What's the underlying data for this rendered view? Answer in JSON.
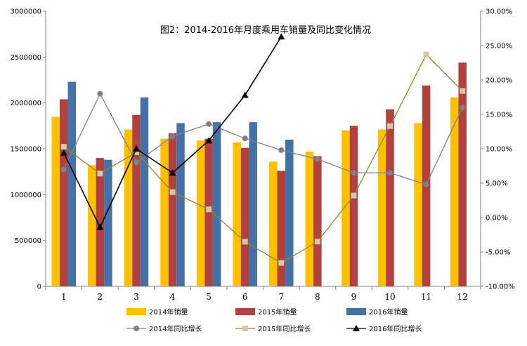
{
  "chart_data": {
    "type": "bar",
    "title": "图2：2014-2016年月度乘用车销量及同比变化情况",
    "categories": [
      "1",
      "2",
      "3",
      "4",
      "5",
      "6",
      "7",
      "8",
      "9",
      "10",
      "11",
      "12"
    ],
    "y_left": {
      "range": [
        0,
        3000000
      ],
      "ticks": [
        0,
        500000,
        1000000,
        1500000,
        2000000,
        2500000,
        3000000
      ],
      "tick_labels": [
        "0",
        "500000",
        "1000000",
        "1500000",
        "2000000",
        "2500000",
        "3000000"
      ]
    },
    "y_right": {
      "range": [
        -10,
        30
      ],
      "ticks": [
        -10,
        -5,
        0,
        5,
        10,
        15,
        20,
        25,
        30
      ],
      "tick_labels": [
        "-10.00%",
        "-5.00%",
        "0.00%",
        "5.00%",
        "10.00%",
        "15.00%",
        "20.00%",
        "25.00%",
        "30.00%"
      ]
    },
    "bar_series": [
      {
        "name": "2014年销量",
        "color": "#FFC000",
        "values": [
          1850000,
          1320000,
          1710000,
          1610000,
          1590000,
          1570000,
          1360000,
          1470000,
          1700000,
          1710000,
          1780000,
          2060000
        ]
      },
      {
        "name": "2015年销量",
        "color": "#B0413E",
        "values": [
          2040000,
          1400000,
          1870000,
          1670000,
          1610000,
          1510000,
          1260000,
          1420000,
          1750000,
          1930000,
          2190000,
          2440000
        ]
      },
      {
        "name": "2016年销量",
        "color": "#4472A8",
        "values": [
          2230000,
          1380000,
          2060000,
          1780000,
          1790000,
          1790000,
          1600000,
          null,
          null,
          null,
          null,
          null
        ]
      }
    ],
    "line_series": [
      {
        "name": "2014年同比增长",
        "color": "#7F7F9F",
        "marker": "circle",
        "marker_color": "#808080",
        "values": [
          7.0,
          18.0,
          8.0,
          11.8,
          13.6,
          11.5,
          9.8,
          8.5,
          6.5,
          6.5,
          4.8,
          16.0
        ]
      },
      {
        "name": "2015年同比增长",
        "color": "#8C8C2A",
        "marker": "square",
        "marker_color": "#D8C6A8",
        "values": [
          10.3,
          6.4,
          9.5,
          3.7,
          1.2,
          -3.5,
          -6.6,
          -3.5,
          3.2,
          13.3,
          23.7,
          18.4
        ]
      },
      {
        "name": "2016年同比增长",
        "color": "#000000",
        "marker": "triangle",
        "marker_color": "#000000",
        "values": [
          9.4,
          -1.4,
          10.0,
          6.5,
          11.2,
          17.8,
          26.3,
          null,
          null,
          null,
          null,
          null
        ]
      }
    ],
    "grid": false,
    "legend_position": "bottom"
  }
}
